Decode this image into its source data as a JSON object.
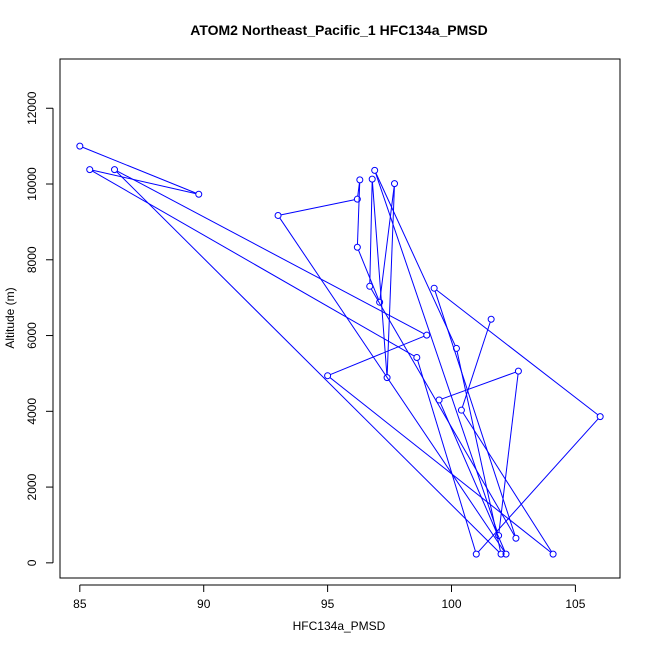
{
  "chart_data": {
    "type": "line",
    "title": "ATOM2 Northeast_Pacific_1 HFC134a_PMSD",
    "xlabel": "HFC134a_PMSD",
    "ylabel": "Altitude (m)",
    "xlim": [
      84.2,
      106.8
    ],
    "ylim": [
      -400,
      13300
    ],
    "xticks": [
      85,
      90,
      95,
      100,
      105
    ],
    "yticks": [
      0,
      2000,
      4000,
      6000,
      8000,
      10000,
      12000
    ],
    "grid": false,
    "line_color": "#0000ff",
    "series": [
      {
        "marker": "open-circle",
        "x": [
          85.0,
          89.8,
          85.4,
          98.6,
          101.0,
          106.0,
          99.3,
          102.6,
          96.7,
          96.8,
          97.4,
          97.7,
          97.1,
          96.2,
          96.3,
          96.2,
          93.0,
          102.2,
          99.5,
          102.7,
          101.9,
          96.9,
          100.2,
          102.0,
          86.4,
          99.0,
          95.0,
          104.1,
          100.4,
          101.6
        ],
        "y": [
          11000,
          9730,
          10380,
          5420,
          230,
          3860,
          7250,
          650,
          7300,
          10130,
          4890,
          10010,
          6880,
          8330,
          10110,
          9600,
          9170,
          230,
          4300,
          5060,
          720,
          10360,
          5660,
          230,
          10380,
          6010,
          4940,
          230,
          4030,
          6430
        ]
      }
    ]
  }
}
